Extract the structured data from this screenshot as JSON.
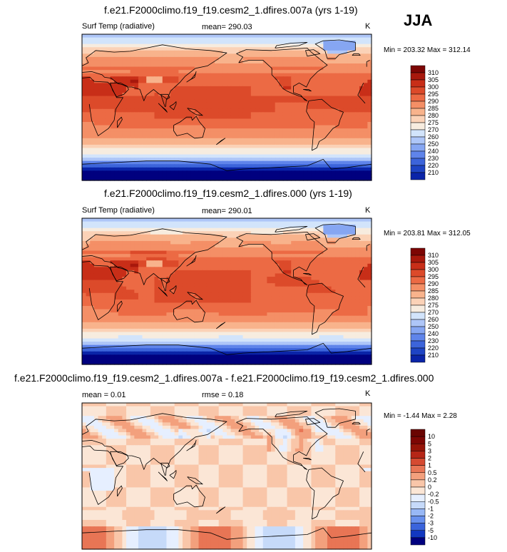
{
  "season": "JJA",
  "colors": {
    "temp": [
      "#00007f",
      "#0a24a8",
      "#1e44c4",
      "#3c64da",
      "#5f84ea",
      "#86a6f2",
      "#aec6f8",
      "#d2e4fb",
      "#f7ecdf",
      "#fbd2b7",
      "#f8b38c",
      "#f48f66",
      "#ec6a44",
      "#dc4a2a",
      "#c82e18",
      "#a8180c",
      "#7d0604"
    ],
    "diff": [
      "#00007f",
      "#1238c0",
      "#3a64dc",
      "#6890ee",
      "#98b8f6",
      "#c6daf9",
      "#e6efff",
      "#fbe6d6",
      "#f9c6a9",
      "#f3a07d",
      "#e87555",
      "#d54a31",
      "#b52617",
      "#7d0604"
    ],
    "coast": "#000000",
    "frame": "#000000"
  },
  "panels": [
    {
      "title": "f.e21.F2000climo.f19_f19.cesm2_1.dfires.007a (yrs 1-19)",
      "left_label": "Surf Temp (radiative)",
      "center_label": "mean= 290.03",
      "right_label": "K",
      "minmax": "Min = 203.32 Max = 312.14",
      "colorbar_labels": [
        "310",
        "305",
        "300",
        "295",
        "290",
        "285",
        "280",
        "275",
        "270",
        "260",
        "250",
        "240",
        "230",
        "220",
        "210"
      ]
    },
    {
      "title": "f.e21.F2000climo.f19_f19.cesm2_1.dfires.000 (yrs 1-19)",
      "left_label": "Surf Temp (radiative)",
      "center_label": "mean= 290.01",
      "right_label": "K",
      "minmax": "Min = 203.81 Max = 312.05",
      "colorbar_labels": [
        "310",
        "305",
        "300",
        "295",
        "290",
        "285",
        "280",
        "275",
        "270",
        "260",
        "250",
        "240",
        "230",
        "220",
        "210"
      ]
    },
    {
      "title": "f.e21.F2000climo.f19_f19.cesm2_1.dfires.007a - f.e21.F2000climo.f19_f19.cesm2_1.dfires.000",
      "left_label": "mean =   0.01",
      "center_label": "rmse =   0.18",
      "right_label": "K",
      "minmax": "Min =  -1.44 Max =   2.28",
      "colorbar_labels": [
        "10",
        "5",
        "3",
        "2",
        "1",
        "0.5",
        "0.2",
        "0",
        "-0.2",
        "-0.5",
        "-1",
        "-2",
        "-3",
        "-5",
        "-10"
      ]
    }
  ],
  "chart_data": [
    {
      "type": "heatmap",
      "title": "f.e21.F2000climo.f19_f19.cesm2_1.dfires.007a (yrs 1-19)",
      "variable": "Surf Temp (radiative)",
      "units": "K",
      "season": "JJA",
      "mean": 290.03,
      "min": 203.32,
      "max": 312.14,
      "contour_levels": [
        210,
        220,
        230,
        240,
        250,
        260,
        270,
        275,
        280,
        285,
        290,
        295,
        300,
        305,
        310
      ]
    },
    {
      "type": "heatmap",
      "title": "f.e21.F2000climo.f19_f19.cesm2_1.dfires.000 (yrs 1-19)",
      "variable": "Surf Temp (radiative)",
      "units": "K",
      "season": "JJA",
      "mean": 290.01,
      "min": 203.81,
      "max": 312.05,
      "contour_levels": [
        210,
        220,
        230,
        240,
        250,
        260,
        270,
        275,
        280,
        285,
        290,
        295,
        300,
        305,
        310
      ]
    },
    {
      "type": "heatmap",
      "title": "f.e21.F2000climo.f19_f19.cesm2_1.dfires.007a - f.e21.F2000climo.f19_f19.cesm2_1.dfires.000",
      "units": "K",
      "mean": 0.01,
      "rmse": 0.18,
      "min": -1.44,
      "max": 2.28,
      "contour_levels": [
        -10,
        -5,
        -3,
        -2,
        -1,
        -0.5,
        -0.2,
        0,
        0.2,
        0.5,
        1,
        2,
        3,
        5,
        10
      ]
    }
  ]
}
